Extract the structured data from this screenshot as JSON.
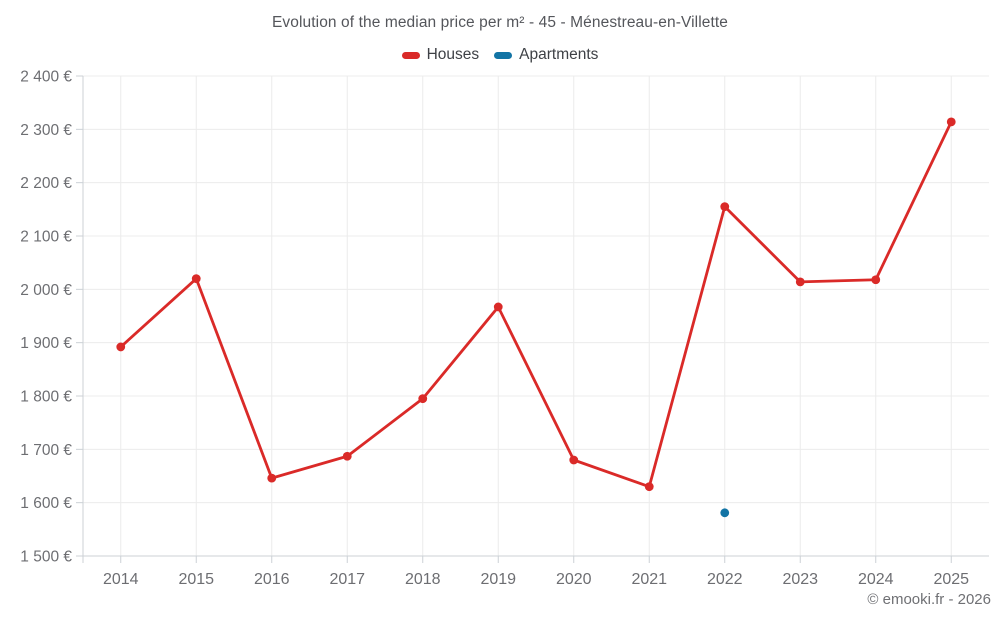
{
  "chart": {
    "title": "Evolution of the median price per m² - 45 - Ménestreau-en-Villette",
    "attribution": "© emooki.fr - 2026"
  },
  "chart_data": {
    "type": "line",
    "title": "Evolution of the median price per m² - 45 - Ménestreau-en-Villette",
    "x": [
      "2014",
      "2015",
      "2016",
      "2017",
      "2018",
      "2019",
      "2020",
      "2021",
      "2022",
      "2023",
      "2024",
      "2025"
    ],
    "series": [
      {
        "name": "Houses",
        "color": "#da2a28",
        "values": [
          1892,
          2020,
          1646,
          1687,
          1795,
          1967,
          1680,
          1630,
          2155,
          2014,
          2018,
          2314
        ]
      },
      {
        "name": "Apartments",
        "color": "#1274a5",
        "values": [
          null,
          null,
          null,
          null,
          null,
          null,
          null,
          null,
          1581,
          null,
          null,
          null
        ]
      }
    ],
    "xlabel": "",
    "ylabel": "",
    "ylim": [
      1500,
      2400
    ],
    "ytick_step": 100,
    "ytick_suffix": " €",
    "grid": true,
    "legend_position": "top"
  },
  "colors": {
    "background": "#ffffff",
    "grid": "#ececec",
    "axis": "#ccd1d6",
    "tick_label": "#6d6e72",
    "title": "#54565b",
    "legend_text": "#3e4146",
    "attribution": "#6f7074"
  }
}
